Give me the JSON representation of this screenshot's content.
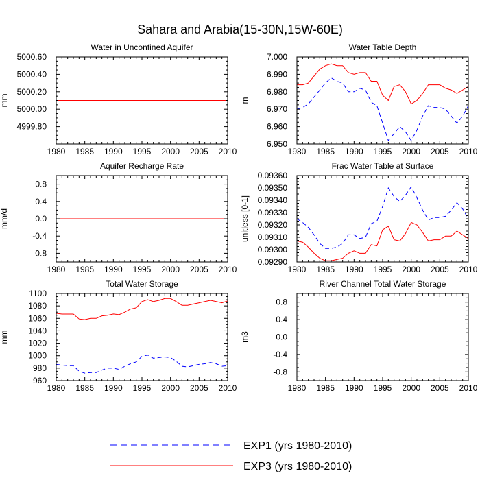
{
  "figure": {
    "title": "Sahara and Arabia(15-30N,15W-60E)",
    "colors": {
      "EXP1": "#0000ff",
      "EXP3": "#ff0000"
    }
  },
  "legend": [
    {
      "name": "EXP1",
      "label": "EXP1 (yrs 1980-2010)",
      "style": "dashed",
      "color": "#0000ff"
    },
    {
      "name": "EXP3",
      "label": "EXP3 (yrs 1980-2010)",
      "style": "solid",
      "color": "#ff0000"
    }
  ],
  "chart_data": [
    {
      "type": "line",
      "title": "Water in Unconfined Aquifer",
      "xlabel": "",
      "ylabel": "mm",
      "xlim": [
        1980,
        2010
      ],
      "ylim": [
        4999.6,
        5000.6
      ],
      "xticks": [
        1980,
        1985,
        1990,
        1995,
        2000,
        2005,
        2010
      ],
      "yticks": [
        4999.8,
        5000.0,
        5000.2,
        5000.4,
        5000.6
      ],
      "ytick_labels": [
        "4999.80",
        "5000.00",
        "5000.20",
        "5000.40",
        "5000.60"
      ],
      "x": [
        1980,
        2010
      ],
      "series": [
        {
          "name": "EXP1",
          "values": [
            5000.1,
            5000.1
          ]
        },
        {
          "name": "EXP3",
          "values": [
            5000.1,
            5000.1
          ]
        }
      ]
    },
    {
      "type": "line",
      "title": "Water Table Depth",
      "xlabel": "",
      "ylabel": "m",
      "xlim": [
        1980,
        2010
      ],
      "ylim": [
        6.95,
        7.0
      ],
      "xticks": [
        1980,
        1985,
        1990,
        1995,
        2000,
        2005,
        2010
      ],
      "yticks": [
        6.95,
        6.96,
        6.97,
        6.98,
        6.99,
        7.0
      ],
      "ytick_labels": [
        "6.950",
        "6.960",
        "6.970",
        "6.980",
        "6.990",
        "7.000"
      ],
      "x": [
        1980,
        1981,
        1982,
        1983,
        1984,
        1985,
        1986,
        1987,
        1988,
        1989,
        1990,
        1991,
        1992,
        1993,
        1994,
        1995,
        1996,
        1997,
        1998,
        1999,
        2000,
        2001,
        2002,
        2003,
        2004,
        2005,
        2006,
        2007,
        2008,
        2009,
        2010
      ],
      "series": [
        {
          "name": "EXP1",
          "values": [
            6.97,
            6.971,
            6.973,
            6.977,
            6.981,
            6.985,
            6.988,
            6.986,
            6.985,
            6.98,
            6.98,
            6.982,
            6.981,
            6.974,
            6.972,
            6.962,
            6.952,
            6.956,
            6.96,
            6.957,
            6.952,
            6.958,
            6.966,
            6.972,
            6.971,
            6.971,
            6.97,
            6.966,
            6.962,
            6.966,
            6.972
          ]
        },
        {
          "name": "EXP3",
          "values": [
            6.984,
            6.984,
            6.985,
            6.989,
            6.993,
            6.995,
            6.996,
            6.995,
            6.995,
            6.991,
            6.99,
            6.991,
            6.991,
            6.986,
            6.986,
            6.978,
            6.975,
            6.983,
            6.984,
            6.98,
            6.973,
            6.975,
            6.979,
            6.984,
            6.984,
            6.984,
            6.982,
            6.981,
            6.979,
            6.981,
            6.983
          ]
        }
      ]
    },
    {
      "type": "line",
      "title": "Aquifer Recharge Rate",
      "xlabel": "",
      "ylabel": "mm/d",
      "xlim": [
        1980,
        2010
      ],
      "ylim": [
        -1.0,
        1.0
      ],
      "xticks": [
        1980,
        1985,
        1990,
        1995,
        2000,
        2005,
        2010
      ],
      "yticks": [
        -0.8,
        -0.4,
        0.0,
        0.4,
        0.8
      ],
      "ytick_labels": [
        "-0.8",
        "-0.4",
        "0.0",
        "0.4",
        "0.8"
      ],
      "x": [
        1980,
        2010
      ],
      "series": [
        {
          "name": "EXP1",
          "values": [
            0.0,
            0.0
          ]
        },
        {
          "name": "EXP3",
          "values": [
            0.0,
            0.0
          ]
        }
      ]
    },
    {
      "type": "line",
      "title": "Frac Water Table at Surface",
      "xlabel": "",
      "ylabel": "unitless [0-1]",
      "xlim": [
        1980,
        2010
      ],
      "ylim": [
        0.0929,
        0.0936
      ],
      "xticks": [
        1980,
        1985,
        1990,
        1995,
        2000,
        2005,
        2010
      ],
      "yticks": [
        0.0929,
        0.093,
        0.0931,
        0.0932,
        0.0933,
        0.0934,
        0.0935,
        0.0936
      ],
      "ytick_labels": [
        "0.09290",
        "0.09300",
        "0.09310",
        "0.09320",
        "0.09330",
        "0.09340",
        "0.09350",
        "0.09360"
      ],
      "x": [
        1980,
        1981,
        1982,
        1983,
        1984,
        1985,
        1986,
        1987,
        1988,
        1989,
        1990,
        1991,
        1992,
        1993,
        1994,
        1995,
        1996,
        1997,
        1998,
        1999,
        2000,
        2001,
        2002,
        2003,
        2004,
        2005,
        2006,
        2007,
        2008,
        2009,
        2010
      ],
      "series": [
        {
          "name": "EXP1",
          "values": [
            0.09325,
            0.09322,
            0.09318,
            0.09312,
            0.09305,
            0.09301,
            0.09301,
            0.09302,
            0.09305,
            0.09312,
            0.09312,
            0.09309,
            0.0931,
            0.09321,
            0.09323,
            0.09335,
            0.0935,
            0.09343,
            0.09339,
            0.09344,
            0.09351,
            0.09342,
            0.09332,
            0.09324,
            0.09326,
            0.09326,
            0.09327,
            0.09332,
            0.09338,
            0.09333,
            0.09325
          ]
        },
        {
          "name": "EXP3",
          "values": [
            0.09307,
            0.09306,
            0.09302,
            0.09297,
            0.09293,
            0.09291,
            0.09291,
            0.09292,
            0.09293,
            0.09297,
            0.09299,
            0.09297,
            0.09297,
            0.09304,
            0.09303,
            0.09316,
            0.09319,
            0.09308,
            0.09307,
            0.09313,
            0.09322,
            0.0932,
            0.09314,
            0.09307,
            0.09308,
            0.09308,
            0.09311,
            0.09311,
            0.09315,
            0.09312,
            0.09309
          ]
        }
      ]
    },
    {
      "type": "line",
      "title": "Total Water Storage",
      "xlabel": "",
      "ylabel": "mm",
      "xlim": [
        1980,
        2010
      ],
      "ylim": [
        960,
        1100
      ],
      "xticks": [
        1980,
        1985,
        1990,
        1995,
        2000,
        2005,
        2010
      ],
      "yticks": [
        960,
        980,
        1000,
        1020,
        1040,
        1060,
        1080,
        1100
      ],
      "ytick_labels": [
        "960",
        "980",
        "1000",
        "1020",
        "1040",
        "1060",
        "1080",
        "1100"
      ],
      "x": [
        1980,
        1981,
        1982,
        1983,
        1984,
        1985,
        1986,
        1987,
        1988,
        1989,
        1990,
        1991,
        1992,
        1993,
        1994,
        1995,
        1996,
        1997,
        1998,
        1999,
        2000,
        2001,
        2002,
        2003,
        2004,
        2005,
        2006,
        2007,
        2008,
        2009,
        2010
      ],
      "series": [
        {
          "name": "EXP1",
          "values": [
            986,
            985,
            984,
            984,
            975,
            972,
            973,
            973,
            977,
            980,
            980,
            978,
            983,
            987,
            990,
            999,
            1001,
            996,
            997,
            998,
            997,
            991,
            983,
            982,
            984,
            986,
            987,
            989,
            987,
            983,
            984
          ]
        },
        {
          "name": "EXP3",
          "values": [
            1068,
            1067,
            1067,
            1067,
            1059,
            1058,
            1060,
            1060,
            1064,
            1065,
            1067,
            1066,
            1070,
            1075,
            1077,
            1087,
            1090,
            1087,
            1089,
            1092,
            1092,
            1087,
            1081,
            1081,
            1083,
            1085,
            1087,
            1089,
            1087,
            1085,
            1088
          ]
        }
      ]
    },
    {
      "type": "line",
      "title": "River Channel Total Water Storage",
      "xlabel": "",
      "ylabel": "m3",
      "xlim": [
        1980,
        2010
      ],
      "ylim": [
        -1.0,
        1.0
      ],
      "xticks": [
        1980,
        1985,
        1990,
        1995,
        2000,
        2005,
        2010
      ],
      "yticks": [
        -0.8,
        -0.4,
        0.0,
        0.4,
        0.8
      ],
      "ytick_labels": [
        "-0.8",
        "-0.4",
        "0.0",
        "0.4",
        "0.8"
      ],
      "x": [
        1980,
        2010
      ],
      "series": [
        {
          "name": "EXP1",
          "values": [
            0.0,
            0.0
          ]
        },
        {
          "name": "EXP3",
          "values": [
            0.0,
            0.0
          ]
        }
      ]
    }
  ]
}
